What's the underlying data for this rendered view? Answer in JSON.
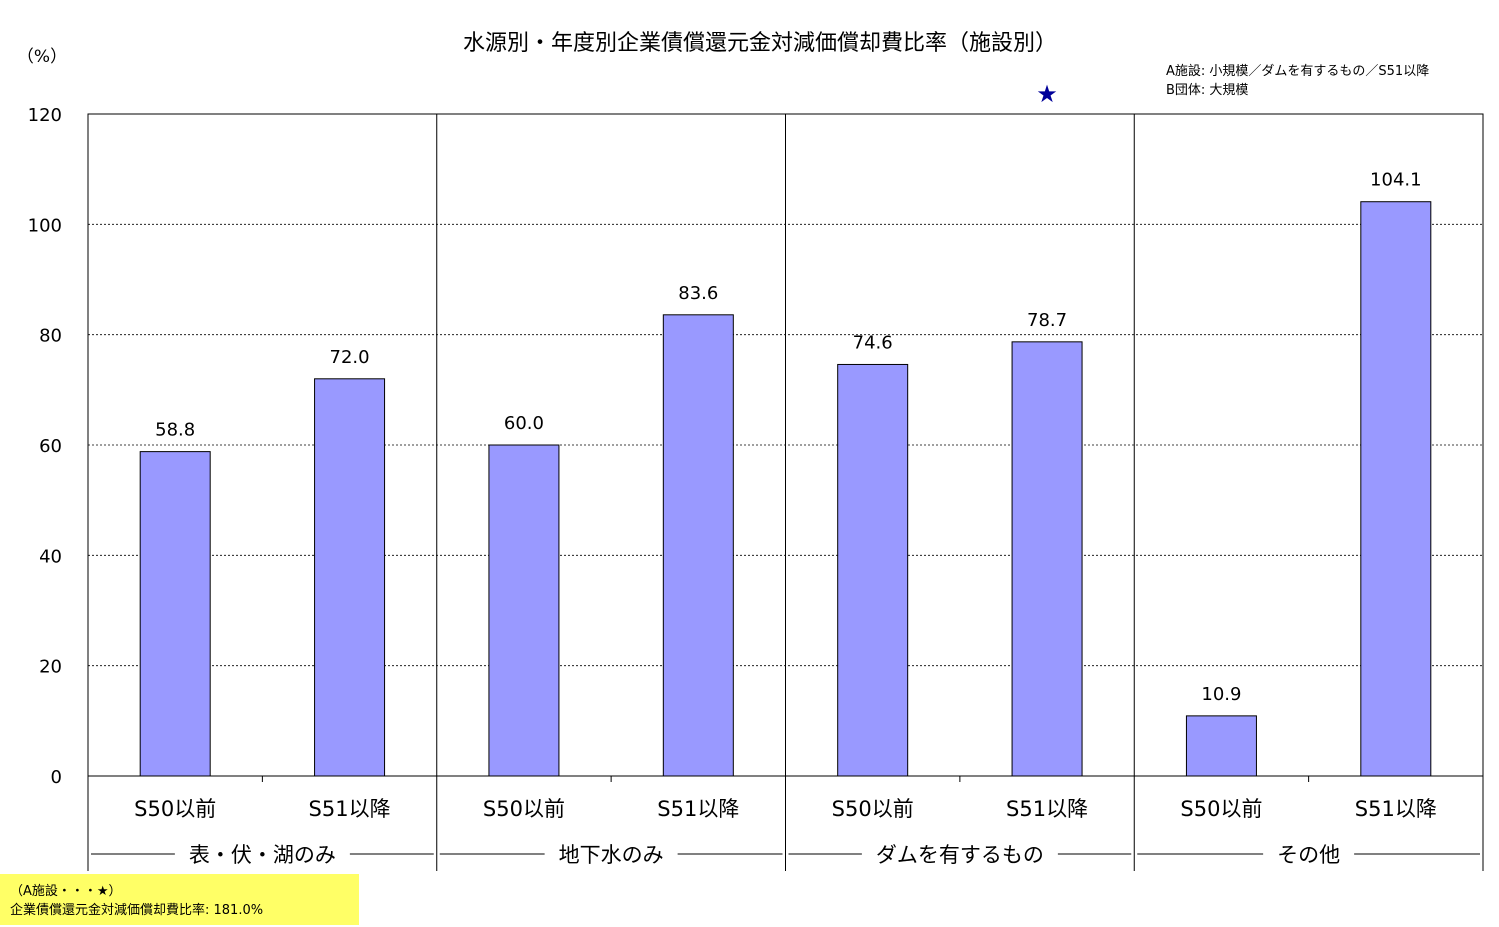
{
  "chart_data": {
    "type": "bar",
    "title": "水源別・年度別企業債償還元金対減価償却費比率（施設別）",
    "ylabel": "（%）",
    "ylim": [
      0,
      120
    ],
    "yticks": [
      0,
      20,
      40,
      60,
      80,
      100,
      120
    ],
    "grid": true,
    "groups": [
      "表・伏・湖のみ",
      "地下水のみ",
      "ダムを有するもの",
      "その他"
    ],
    "subcategories": [
      "S50以前",
      "S51以降"
    ],
    "values": [
      [
        58.8,
        72.0
      ],
      [
        60.0,
        83.6
      ],
      [
        74.6,
        78.7
      ],
      [
        10.9,
        104.1
      ]
    ],
    "value_labels": [
      [
        "58.8",
        "72.0"
      ],
      [
        "60.0",
        "83.6"
      ],
      [
        "74.6",
        "78.7"
      ],
      [
        "10.9",
        "104.1"
      ]
    ],
    "bar_color": "#9999ff",
    "marker": {
      "symbol": "★",
      "group_index": 2,
      "sub_index": 1,
      "value": 181.0,
      "color": "#000099"
    },
    "legend_notes": [
      "A施設: 小規模／ダムを有するもの／S51以降",
      "B団体: 大規模"
    ]
  },
  "note": {
    "line1": "（A施設・・・★）",
    "line2": "企業債償還元金対減価償却費比率: 181.0%"
  }
}
